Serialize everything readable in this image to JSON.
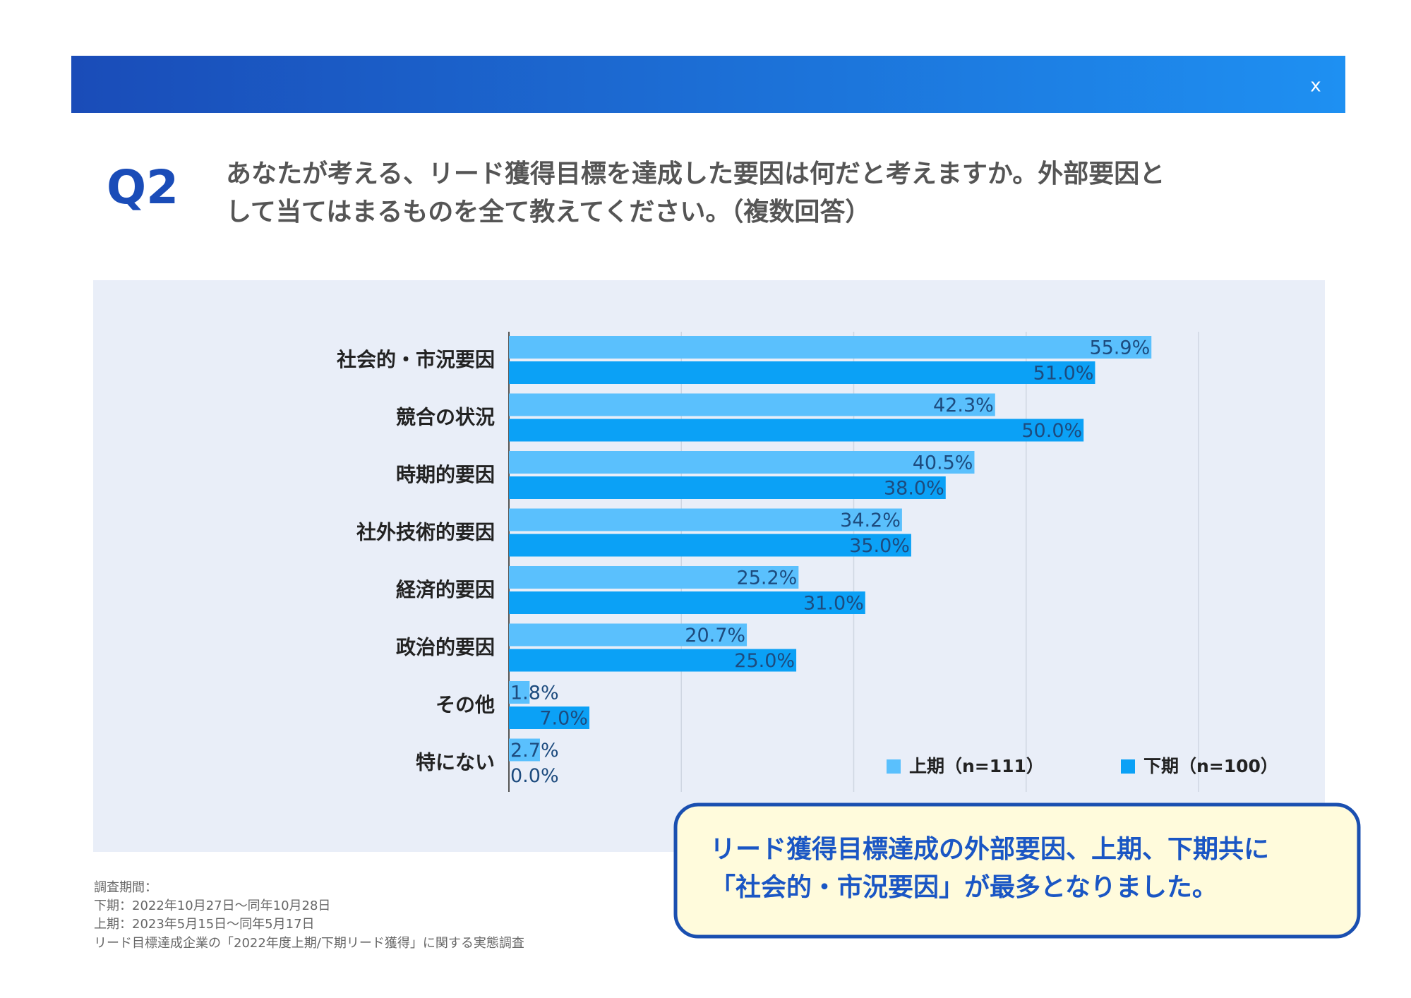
{
  "header": {
    "close": "x"
  },
  "question": {
    "label": "Q2",
    "lines": [
      "あなたが考える、リード獲得目標を達成した要因は何だと考えますか。外部要因と",
      "して当てはまるものを全て教えてください。（複数回答）"
    ]
  },
  "chart_data": {
    "type": "bar",
    "orientation": "horizontal",
    "categories": [
      "社会的・市況要因",
      "競合の状況",
      "時期的要因",
      "社外技術的要因",
      "経済的要因",
      "政治的要因",
      "その他",
      "特にない"
    ],
    "series": [
      {
        "name": "上期（n=111）",
        "color": "#5ac0fd",
        "values": [
          55.9,
          42.3,
          40.5,
          34.2,
          25.2,
          20.7,
          1.8,
          2.7
        ],
        "value_labels": [
          "55.9%",
          "42.3%",
          "40.5%",
          "34.2%",
          "25.2%",
          "20.7%",
          "1.8%",
          "2.7%"
        ]
      },
      {
        "name": "下期（n=100）",
        "color": "#0ba1f6",
        "values": [
          51.0,
          50.0,
          38.0,
          35.0,
          31.0,
          25.0,
          7.0,
          0.0
        ],
        "value_labels": [
          "51.0%",
          "50.0%",
          "38.0%",
          "35.0%",
          "31.0%",
          "25.0%",
          "7.0%",
          "0.0%"
        ]
      }
    ],
    "xlim": [
      0,
      60
    ],
    "xticks": [
      0,
      15,
      30,
      45,
      60
    ],
    "grid": true,
    "legend": "lower right"
  },
  "callout": {
    "lines": [
      "リード獲得目標達成の外部要因、上期、下期共に",
      "「社会的・市況要因」が最多となりました。"
    ]
  },
  "footnote": {
    "lines": [
      "調査期間：",
      "下期：2022年10月27日〜同年10月28日",
      "上期：2023年5月15日〜同年5月17日",
      "リード目標達成企業の「2022年度上期/下期リード獲得」に関する実態調査"
    ]
  }
}
